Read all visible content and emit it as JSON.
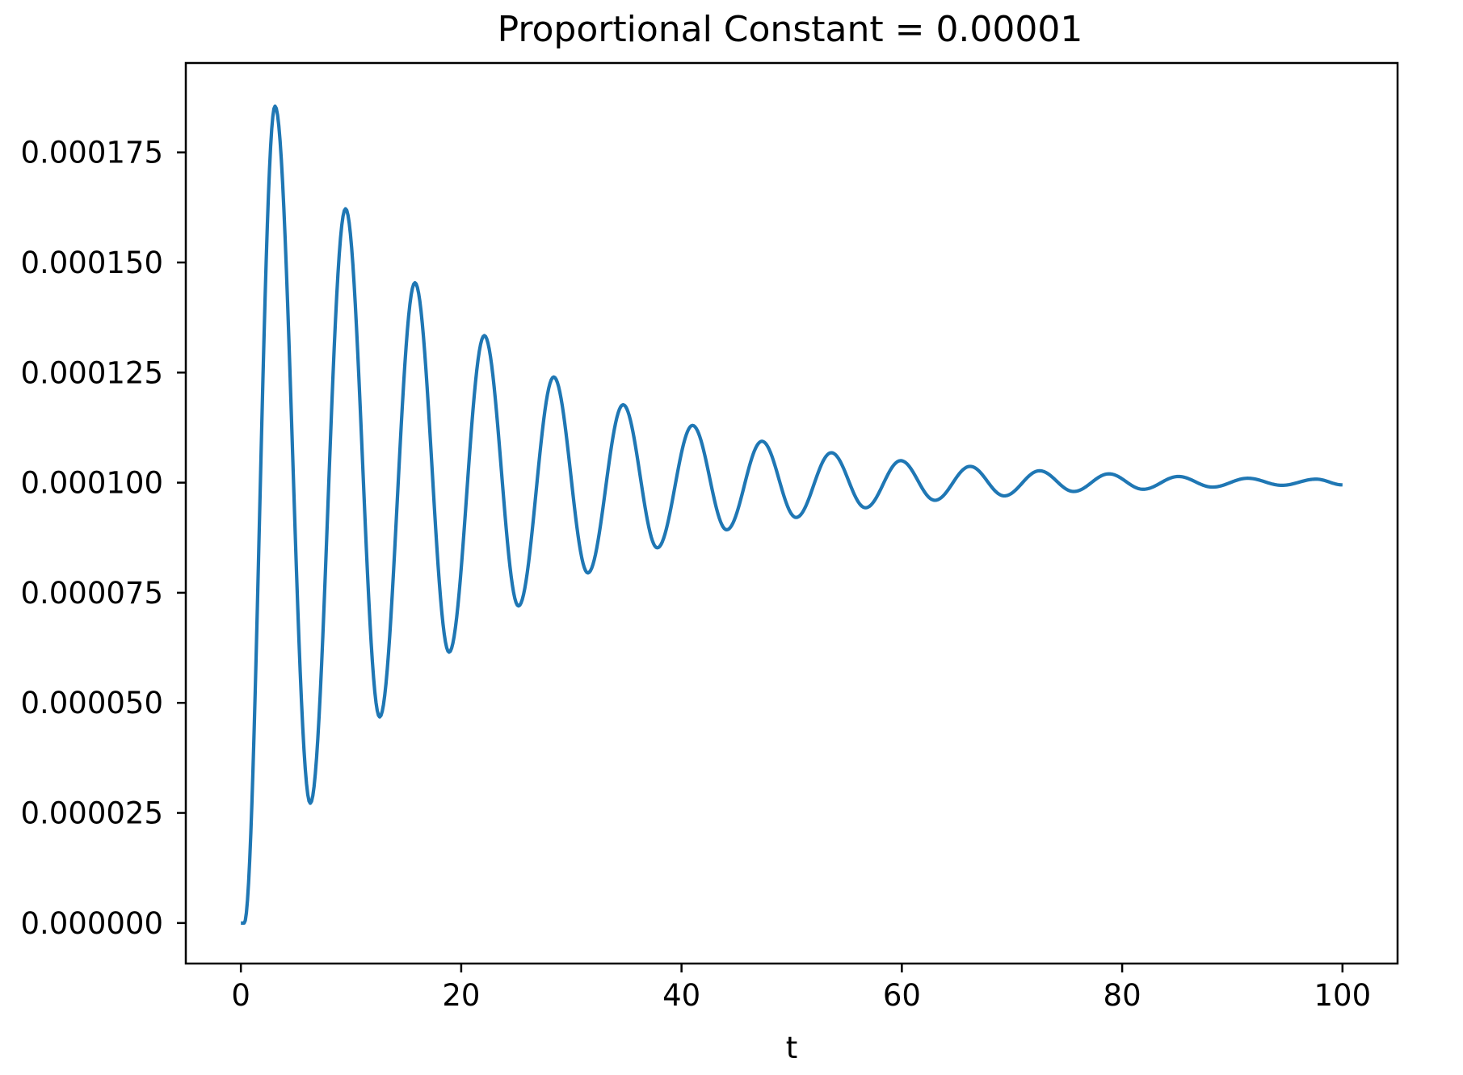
{
  "chart_data": {
    "type": "line",
    "title": "Proportional Constant = 0.00001",
    "xlabel": "t",
    "ylabel": "",
    "xlim": [
      -5,
      105
    ],
    "ylim": [
      -9.2e-06,
      0.0001953
    ],
    "xticks": [
      0,
      20,
      40,
      60,
      80,
      100
    ],
    "xtick_labels": [
      "0",
      "20",
      "40",
      "60",
      "80",
      "100"
    ],
    "yticks": [
      0,
      2.5e-05,
      5e-05,
      7.5e-05,
      0.0001,
      0.000125,
      0.00015,
      0.000175
    ],
    "ytick_labels": [
      "0.000000",
      "0.000025",
      "0.000050",
      "0.000075",
      "0.000100",
      "0.000125",
      "0.000150",
      "0.000175"
    ],
    "grid": false,
    "legend": "none",
    "series": [
      {
        "color": "#1f77b4",
        "x": [
          0,
          0.3,
          3.1,
          6.3,
          9.5,
          12.6,
          15.8,
          18.9,
          22.1,
          25.2,
          28.4,
          31.5,
          34.7,
          37.8,
          41.0,
          44.1,
          47.3,
          50.4,
          53.6,
          56.7,
          59.9,
          63.0,
          66.2,
          69.3,
          72.5,
          75.6,
          78.8,
          81.9,
          85.1,
          88.2,
          91.4,
          94.5,
          97.6,
          100.0
        ],
        "values": [
          0,
          0,
          0.0001855,
          2.72e-05,
          0.0001622,
          4.68e-05,
          0.0001454,
          6.15e-05,
          0.0001334,
          7.2e-05,
          0.000124,
          7.95e-05,
          0.0001177,
          8.52e-05,
          0.000113,
          8.93e-05,
          0.0001094,
          9.21e-05,
          0.0001068,
          9.43e-05,
          0.000105,
          9.6e-05,
          0.0001037,
          9.7e-05,
          0.0001027,
          9.8e-05,
          0.000102,
          9.85e-05,
          0.0001014,
          9.9e-05,
          0.000101,
          9.94e-05,
          0.0001008,
          9.95e-05
        ]
      }
    ]
  }
}
